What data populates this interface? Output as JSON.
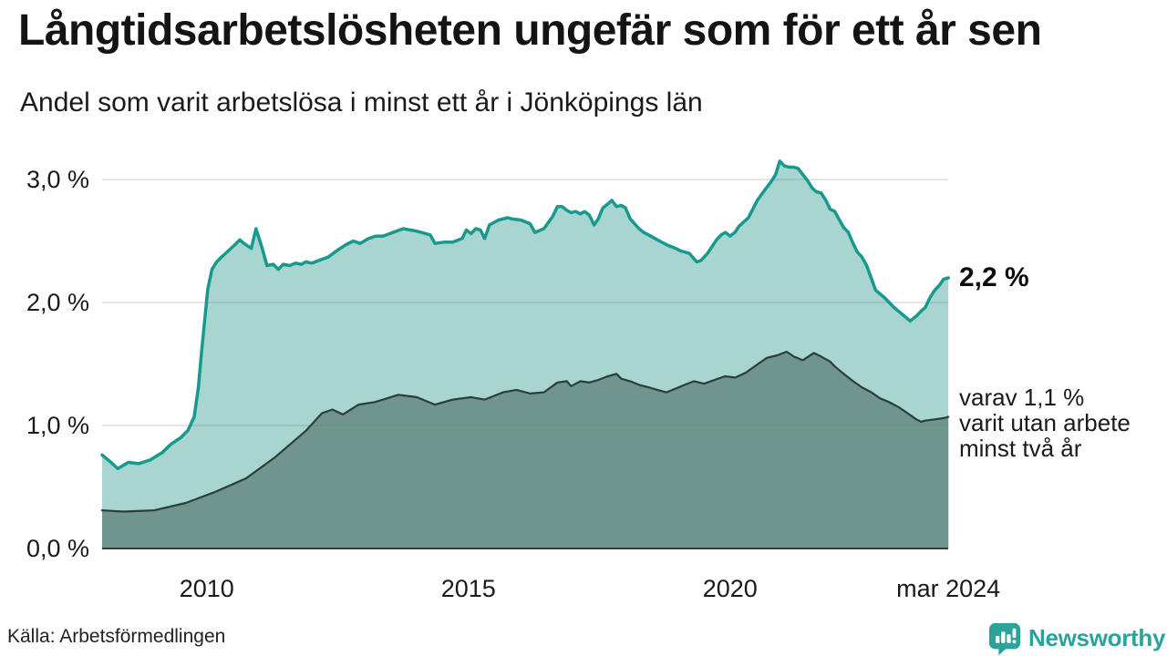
{
  "header": {
    "title": "Långtidsarbetslösheten ungefär som för ett år sen",
    "subtitle": "Andel som varit arbetslösa i minst ett år i Jönköpings län"
  },
  "annotations": {
    "latest_total": "2,2 %",
    "breakdown_lines": [
      "varav 1,1 %",
      "varit utan arbete",
      "minst två år"
    ]
  },
  "footer": {
    "source": "Källa: Arbetsförmedlingen",
    "brand": "Newsworthy"
  },
  "colors": {
    "total_line": "#17998d",
    "total_fill": "#a8d5cf",
    "two_year_line": "#2c3e3b",
    "two_year_fill": "#6f958e",
    "gridline": "rgba(95,120,115,0.22)",
    "axis_line": "#3a3a3a",
    "brand_teal": "#2aa39a",
    "text": "#1a1a1a"
  },
  "chart_data": {
    "type": "area",
    "title": "Långtidsarbetslösheten ungefär som för ett år sen",
    "subtitle": "Andel som varit arbetslösa i minst ett år i Jönköpings län",
    "unit": "%",
    "grid": true,
    "legend": "none",
    "x_axis": {
      "range": [
        2008.0,
        2024.17
      ],
      "ticks": [
        {
          "year": 2010,
          "label": "2010"
        },
        {
          "year": 2015,
          "label": "2015"
        },
        {
          "year": 2020,
          "label": "2020"
        },
        {
          "year": 2024.17,
          "label": "mar 2024"
        }
      ]
    },
    "y_axis": {
      "range": [
        0,
        3.2
      ],
      "ticks": [
        {
          "value": 3.0,
          "label": "3,0 %"
        },
        {
          "value": 2.0,
          "label": "2,0 %"
        },
        {
          "value": 1.0,
          "label": "1,0 %"
        },
        {
          "value": 0.0,
          "label": "0,0 %"
        }
      ]
    },
    "series": [
      {
        "name": "Andel arbetslösa minst ett år",
        "color": "#17998d",
        "fill": "#a8d5cf",
        "latest_value": 2.2,
        "latest_label": "2,2 %",
        "points": [
          [
            2008.0,
            0.76
          ],
          [
            2008.17,
            0.7
          ],
          [
            2008.3,
            0.65
          ],
          [
            2008.5,
            0.7
          ],
          [
            2008.7,
            0.69
          ],
          [
            2008.92,
            0.72
          ],
          [
            2009.15,
            0.78
          ],
          [
            2009.32,
            0.85
          ],
          [
            2009.5,
            0.9
          ],
          [
            2009.64,
            0.96
          ],
          [
            2009.76,
            1.07
          ],
          [
            2009.84,
            1.31
          ],
          [
            2009.9,
            1.6
          ],
          [
            2009.97,
            1.9
          ],
          [
            2010.02,
            2.11
          ],
          [
            2010.1,
            2.27
          ],
          [
            2010.19,
            2.33
          ],
          [
            2010.28,
            2.37
          ],
          [
            2010.36,
            2.4
          ],
          [
            2010.54,
            2.47
          ],
          [
            2010.63,
            2.51
          ],
          [
            2010.71,
            2.48
          ],
          [
            2010.85,
            2.44
          ],
          [
            2010.94,
            2.6
          ],
          [
            2011.06,
            2.44
          ],
          [
            2011.15,
            2.3
          ],
          [
            2011.27,
            2.31
          ],
          [
            2011.37,
            2.27
          ],
          [
            2011.46,
            2.31
          ],
          [
            2011.58,
            2.3
          ],
          [
            2011.7,
            2.32
          ],
          [
            2011.81,
            2.31
          ],
          [
            2011.89,
            2.33
          ],
          [
            2012.01,
            2.32
          ],
          [
            2012.13,
            2.34
          ],
          [
            2012.32,
            2.37
          ],
          [
            2012.48,
            2.42
          ],
          [
            2012.66,
            2.47
          ],
          [
            2012.8,
            2.5
          ],
          [
            2012.93,
            2.48
          ],
          [
            2013.09,
            2.52
          ],
          [
            2013.23,
            2.54
          ],
          [
            2013.37,
            2.54
          ],
          [
            2013.75,
            2.6
          ],
          [
            2014.01,
            2.58
          ],
          [
            2014.27,
            2.55
          ],
          [
            2014.36,
            2.48
          ],
          [
            2014.53,
            2.49
          ],
          [
            2014.7,
            2.49
          ],
          [
            2014.88,
            2.52
          ],
          [
            2014.96,
            2.59
          ],
          [
            2015.05,
            2.56
          ],
          [
            2015.14,
            2.6
          ],
          [
            2015.23,
            2.59
          ],
          [
            2015.31,
            2.52
          ],
          [
            2015.4,
            2.63
          ],
          [
            2015.57,
            2.67
          ],
          [
            2015.75,
            2.69
          ],
          [
            2015.83,
            2.68
          ],
          [
            2016.01,
            2.67
          ],
          [
            2016.18,
            2.64
          ],
          [
            2016.27,
            2.57
          ],
          [
            2016.44,
            2.6
          ],
          [
            2016.61,
            2.7
          ],
          [
            2016.7,
            2.78
          ],
          [
            2016.79,
            2.78
          ],
          [
            2016.88,
            2.75
          ],
          [
            2016.96,
            2.73
          ],
          [
            2017.05,
            2.74
          ],
          [
            2017.14,
            2.72
          ],
          [
            2017.22,
            2.74
          ],
          [
            2017.31,
            2.71
          ],
          [
            2017.4,
            2.63
          ],
          [
            2017.48,
            2.68
          ],
          [
            2017.57,
            2.77
          ],
          [
            2017.66,
            2.8
          ],
          [
            2017.74,
            2.83
          ],
          [
            2017.83,
            2.78
          ],
          [
            2017.92,
            2.79
          ],
          [
            2018.0,
            2.77
          ],
          [
            2018.09,
            2.68
          ],
          [
            2018.26,
            2.6
          ],
          [
            2018.35,
            2.57
          ],
          [
            2018.44,
            2.55
          ],
          [
            2018.61,
            2.51
          ],
          [
            2018.78,
            2.47
          ],
          [
            2018.96,
            2.44
          ],
          [
            2019.05,
            2.42
          ],
          [
            2019.22,
            2.4
          ],
          [
            2019.36,
            2.33
          ],
          [
            2019.44,
            2.34
          ],
          [
            2019.57,
            2.4
          ],
          [
            2019.74,
            2.51
          ],
          [
            2019.83,
            2.55
          ],
          [
            2019.91,
            2.57
          ],
          [
            2020.0,
            2.54
          ],
          [
            2020.09,
            2.57
          ],
          [
            2020.17,
            2.62
          ],
          [
            2020.35,
            2.69
          ],
          [
            2020.52,
            2.83
          ],
          [
            2020.69,
            2.93
          ],
          [
            2020.78,
            2.98
          ],
          [
            2020.87,
            3.04
          ],
          [
            2020.95,
            3.15
          ],
          [
            2021.04,
            3.11
          ],
          [
            2021.13,
            3.1
          ],
          [
            2021.22,
            3.1
          ],
          [
            2021.3,
            3.09
          ],
          [
            2021.39,
            3.04
          ],
          [
            2021.48,
            2.99
          ],
          [
            2021.57,
            2.93
          ],
          [
            2021.65,
            2.9
          ],
          [
            2021.74,
            2.89
          ],
          [
            2021.83,
            2.83
          ],
          [
            2021.91,
            2.76
          ],
          [
            2022.0,
            2.74
          ],
          [
            2022.09,
            2.67
          ],
          [
            2022.17,
            2.61
          ],
          [
            2022.26,
            2.57
          ],
          [
            2022.35,
            2.48
          ],
          [
            2022.43,
            2.41
          ],
          [
            2022.52,
            2.37
          ],
          [
            2022.61,
            2.3
          ],
          [
            2022.78,
            2.1
          ],
          [
            2022.95,
            2.04
          ],
          [
            2023.13,
            1.96
          ],
          [
            2023.3,
            1.9
          ],
          [
            2023.44,
            1.85
          ],
          [
            2023.56,
            1.89
          ],
          [
            2023.65,
            1.93
          ],
          [
            2023.73,
            1.96
          ],
          [
            2023.82,
            2.04
          ],
          [
            2023.91,
            2.1
          ],
          [
            2024.0,
            2.14
          ],
          [
            2024.08,
            2.19
          ],
          [
            2024.17,
            2.2
          ]
        ]
      },
      {
        "name": "varav utan arbete minst två år",
        "color": "#2c3e3b",
        "fill": "#6f958e",
        "latest_value": 1.1,
        "latest_label": "varav 1,1 % varit utan arbete minst två år",
        "points": [
          [
            2008.0,
            0.31
          ],
          [
            2008.4,
            0.3
          ],
          [
            2009.0,
            0.31
          ],
          [
            2009.6,
            0.37
          ],
          [
            2010.16,
            0.46
          ],
          [
            2010.75,
            0.57
          ],
          [
            2011.3,
            0.74
          ],
          [
            2011.9,
            0.96
          ],
          [
            2012.2,
            1.1
          ],
          [
            2012.4,
            1.13
          ],
          [
            2012.6,
            1.09
          ],
          [
            2012.9,
            1.17
          ],
          [
            2013.2,
            1.19
          ],
          [
            2013.37,
            1.21
          ],
          [
            2013.66,
            1.25
          ],
          [
            2014.01,
            1.23
          ],
          [
            2014.36,
            1.17
          ],
          [
            2014.7,
            1.21
          ],
          [
            2015.05,
            1.23
          ],
          [
            2015.31,
            1.21
          ],
          [
            2015.66,
            1.27
          ],
          [
            2015.92,
            1.29
          ],
          [
            2016.18,
            1.26
          ],
          [
            2016.44,
            1.27
          ],
          [
            2016.7,
            1.35
          ],
          [
            2016.88,
            1.36
          ],
          [
            2016.96,
            1.32
          ],
          [
            2017.14,
            1.36
          ],
          [
            2017.31,
            1.35
          ],
          [
            2017.48,
            1.37
          ],
          [
            2017.66,
            1.4
          ],
          [
            2017.83,
            1.42
          ],
          [
            2017.92,
            1.38
          ],
          [
            2018.09,
            1.36
          ],
          [
            2018.26,
            1.33
          ],
          [
            2018.44,
            1.31
          ],
          [
            2018.61,
            1.29
          ],
          [
            2018.78,
            1.27
          ],
          [
            2018.96,
            1.3
          ],
          [
            2019.13,
            1.33
          ],
          [
            2019.31,
            1.36
          ],
          [
            2019.5,
            1.34
          ],
          [
            2019.7,
            1.37
          ],
          [
            2019.9,
            1.4
          ],
          [
            2020.1,
            1.39
          ],
          [
            2020.3,
            1.43
          ],
          [
            2020.5,
            1.49
          ],
          [
            2020.7,
            1.55
          ],
          [
            2020.9,
            1.57
          ],
          [
            2021.08,
            1.6
          ],
          [
            2021.22,
            1.56
          ],
          [
            2021.39,
            1.53
          ],
          [
            2021.6,
            1.59
          ],
          [
            2021.74,
            1.56
          ],
          [
            2021.91,
            1.52
          ],
          [
            2022.0,
            1.48
          ],
          [
            2022.17,
            1.42
          ],
          [
            2022.35,
            1.36
          ],
          [
            2022.52,
            1.31
          ],
          [
            2022.7,
            1.27
          ],
          [
            2022.87,
            1.22
          ],
          [
            2023.04,
            1.19
          ],
          [
            2023.22,
            1.15
          ],
          [
            2023.39,
            1.1
          ],
          [
            2023.56,
            1.05
          ],
          [
            2023.65,
            1.03
          ],
          [
            2023.73,
            1.04
          ],
          [
            2023.91,
            1.05
          ],
          [
            2024.08,
            1.06
          ],
          [
            2024.17,
            1.07
          ]
        ]
      }
    ]
  }
}
